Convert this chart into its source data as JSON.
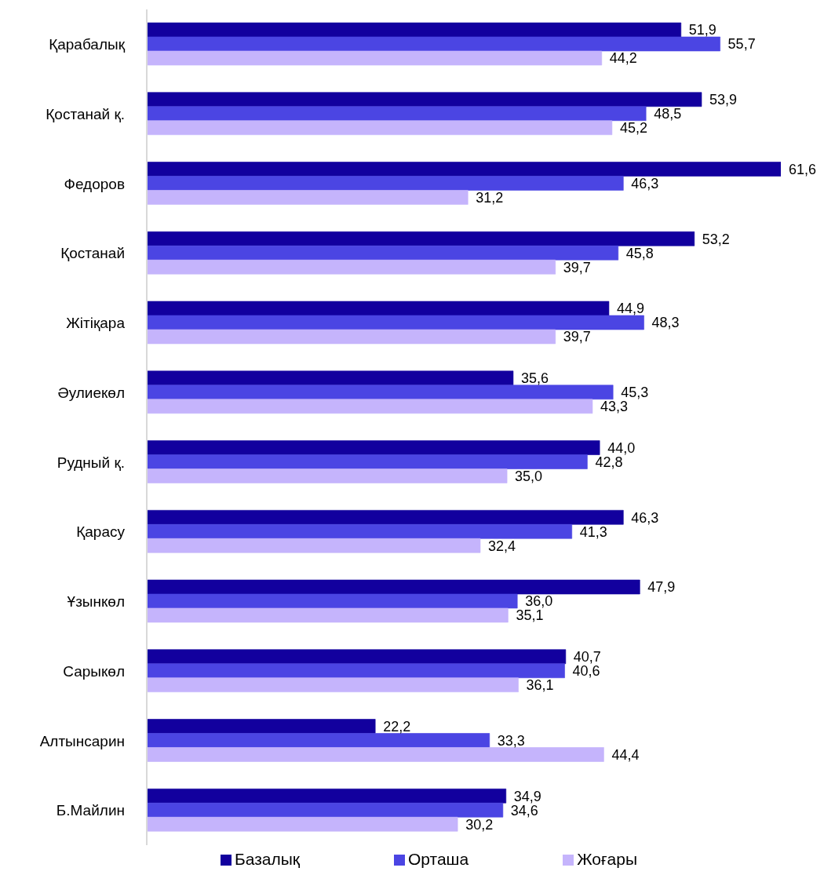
{
  "chart_data": {
    "type": "bar",
    "orientation": "horizontal",
    "categories": [
      "Қарабалық",
      "Қостанай қ.",
      "Федоров",
      "Қостанай",
      "Жітіқара",
      "Әулиекөл",
      "Рудный қ.",
      "Қарасу",
      "Ұзынкөл",
      "Сарыкөл",
      "Алтынсарин",
      "Б.Майлин"
    ],
    "series": [
      {
        "name": "Базалық",
        "color": "#12009e",
        "values": [
          51.9,
          53.9,
          61.6,
          53.2,
          44.9,
          35.6,
          44.0,
          46.3,
          47.9,
          40.7,
          22.2,
          34.9
        ],
        "value_labels": [
          "51,9",
          "53,9",
          "61,6",
          "53,2",
          "44,9",
          "35,6",
          "44,0",
          "46,3",
          "47,9",
          "40,7",
          "22,2",
          "34,9"
        ]
      },
      {
        "name": "Орташа",
        "color": "#4b45e3",
        "values": [
          55.7,
          48.5,
          46.3,
          45.8,
          48.3,
          45.3,
          42.8,
          41.3,
          36.0,
          40.6,
          33.3,
          34.6
        ],
        "value_labels": [
          "55,7",
          "48,5",
          "46,3",
          "45,8",
          "48,3",
          "45,3",
          "42,8",
          "41,3",
          "36,0",
          "40,6",
          "33,3",
          "34,6"
        ]
      },
      {
        "name": "Жоғары",
        "color": "#c5b4fc",
        "values": [
          44.2,
          45.2,
          31.2,
          39.7,
          39.7,
          43.3,
          35.0,
          32.4,
          35.1,
          36.1,
          44.4,
          30.2
        ],
        "value_labels": [
          "44,2",
          "45,2",
          "31,2",
          "39,7",
          "39,7",
          "43,3",
          "35,0",
          "32,4",
          "35,1",
          "36,1",
          "44,4",
          "30,2"
        ]
      }
    ],
    "tick_labels": "y",
    "legend": "bottom"
  }
}
